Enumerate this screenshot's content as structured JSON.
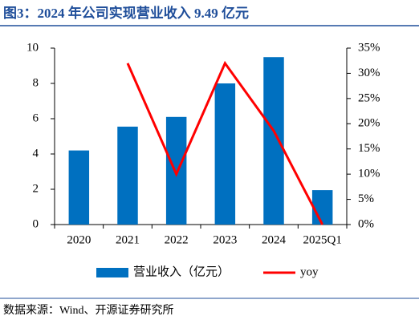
{
  "chart_data": {
    "type": "bar",
    "title": "图3：2024 年公司实现营业收入 9.49 亿元",
    "source": "数据来源：Wind、开源证券研究所",
    "categories": [
      "2020",
      "2021",
      "2022",
      "2023",
      "2024",
      "2025Q1"
    ],
    "series": [
      {
        "name": "营业收入（亿元）",
        "type": "bar",
        "color": "#0070c0",
        "values": [
          4.2,
          5.55,
          6.1,
          8.0,
          9.49,
          1.95
        ]
      },
      {
        "name": "yoy",
        "type": "line",
        "axis": "y2",
        "color": "#ff0000",
        "values": [
          null,
          32,
          10,
          32,
          18.6,
          0
        ]
      }
    ],
    "ylim": [
      0,
      10
    ],
    "yticks": [
      0,
      2,
      4,
      6,
      8,
      10
    ],
    "y2lim": [
      0,
      35
    ],
    "y2ticks": [
      {
        "value": 0,
        "label": "0%"
      },
      {
        "value": 5,
        "label": "5%"
      },
      {
        "value": 10,
        "label": "10%"
      },
      {
        "value": 15,
        "label": "15%"
      },
      {
        "value": 20,
        "label": "20%"
      },
      {
        "value": 25,
        "label": "25%"
      },
      {
        "value": 30,
        "label": "30%"
      },
      {
        "value": 35,
        "label": "35%"
      }
    ],
    "legend": "bottom"
  }
}
